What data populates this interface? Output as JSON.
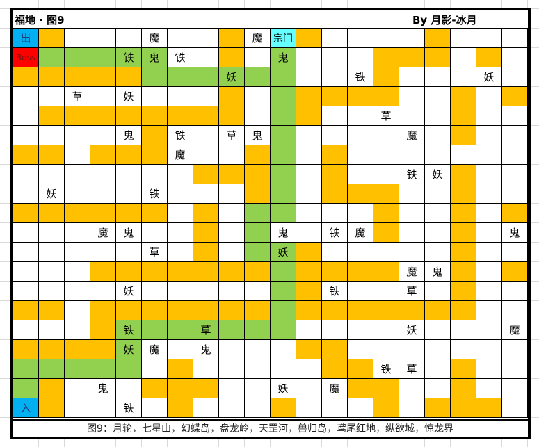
{
  "header": {
    "title": "福地 · 图9",
    "author": "By 月影-冰月"
  },
  "footer": {
    "text": "图9：月轮，七星山，幻蝶岛，盘龙岭，天罡河，兽归岛，鸢尾红地，纵欲城，惊龙界"
  },
  "colors": {
    "O": "#FFC000",
    "G": "#92D050",
    "B": "#00B0F0",
    "R": "#FF0000",
    "C": "#66FFFF",
    "W": "#FFFFFF"
  },
  "legend_codes": {
    "O": "orange",
    "G": "green",
    "B": "blue",
    "R": "red",
    "C": "cyan",
    "W": "white"
  },
  "grid": {
    "rows": [
      "BOWWWWWWOWCOWWWWOWWW",
      "RGGGGGWWOWGWWWOOOWOW",
      "OOOOOGGGGGGWWWOWWWWW",
      "WWWWWWWWOWGOOOOWWOWO",
      "WOOOOOOOOWGOWWWWWOWW",
      "WWWWWOWWWWGWWWWWWOWW",
      "OOWOOOWWWOGWOWWWWWWW",
      "WWWWWWWOOOGWOWWWWOWW",
      "WWWWWWWWWOGWOOOWWOWW",
      "OOOOOOWOWGGWWWOWWOWO",
      "WWWWWWWOWGWWWWOWWOWW",
      "WWWWWWWOWGGOWWWWWOWW",
      "WWWOOOOOOOGOOOOWWOWO",
      "WWWWWWWWWWGOWWWWWOWW",
      "OOWOOOOOOOGOOOOOOOWW",
      "WWWOGGGGGGGWWWWWWWWW",
      "OOOOGWWWWWWOOWWWWWWW",
      "GGGGGWOWWWWWOOWWWOWW",
      "GOWWWOOOWWWWWOOWWOWW",
      "BOWWWWOWWWOWWWOWOOOW"
    ],
    "labels": [
      [
        "出",
        "",
        "",
        "",
        "",
        "魔",
        "",
        "",
        "",
        "魔",
        "宗门",
        "",
        "",
        "",
        "",
        "",
        "",
        "",
        "",
        ""
      ],
      [
        "Boss",
        "",
        "",
        "",
        "铁",
        "鬼",
        "铁",
        "",
        "",
        "",
        "鬼",
        "",
        "",
        "",
        "",
        "",
        "",
        "",
        "",
        ""
      ],
      [
        "",
        "",
        "",
        "",
        "",
        "",
        "",
        "",
        "妖",
        "",
        "",
        "",
        "",
        "铁",
        "",
        "",
        "",
        "",
        "妖",
        ""
      ],
      [
        "",
        "",
        "草",
        "",
        "妖",
        "",
        "",
        "",
        "",
        "",
        "",
        "",
        "",
        "",
        "",
        "",
        "",
        "",
        "",
        ""
      ],
      [
        "",
        "",
        "",
        "",
        "",
        "",
        "",
        "",
        "",
        "",
        "",
        "",
        "",
        "",
        "草",
        "",
        "",
        "",
        "",
        ""
      ],
      [
        "",
        "",
        "",
        "",
        "鬼",
        "",
        "铁",
        "",
        "草",
        "鬼",
        "",
        "",
        "",
        "",
        "",
        "魔",
        "",
        "",
        "",
        ""
      ],
      [
        "",
        "",
        "",
        "",
        "",
        "",
        "魔",
        "",
        "",
        "",
        "",
        "",
        "",
        "",
        "",
        "",
        "",
        "",
        "",
        ""
      ],
      [
        "",
        "",
        "",
        "",
        "",
        "",
        "",
        "",
        "",
        "",
        "",
        "",
        "",
        "",
        "",
        "铁",
        "妖",
        "",
        "",
        ""
      ],
      [
        "",
        "妖",
        "",
        "",
        "",
        "铁",
        "",
        "",
        "",
        "",
        "",
        "",
        "",
        "",
        "",
        "",
        "",
        "",
        "",
        ""
      ],
      [
        "",
        "",
        "",
        "",
        "",
        "",
        "",
        "",
        "",
        "",
        "",
        "",
        "",
        "",
        "",
        "",
        "",
        "",
        "",
        ""
      ],
      [
        "",
        "",
        "",
        "魔",
        "鬼",
        "",
        "",
        "",
        "",
        "",
        "鬼",
        "",
        "铁",
        "魔",
        "",
        "",
        "",
        "",
        "",
        "鬼"
      ],
      [
        "",
        "",
        "",
        "",
        "",
        "草",
        "",
        "",
        "",
        "",
        "妖",
        "",
        "",
        "",
        "",
        "",
        "",
        "",
        "",
        ""
      ],
      [
        "",
        "",
        "",
        "",
        "",
        "",
        "",
        "",
        "",
        "",
        "",
        "",
        "",
        "",
        "",
        "魔",
        "鬼",
        "",
        "",
        ""
      ],
      [
        "",
        "",
        "",
        "",
        "妖",
        "",
        "",
        "",
        "",
        "",
        "",
        "",
        "铁",
        "",
        "",
        "草",
        "",
        "",
        "",
        ""
      ],
      [
        "",
        "",
        "",
        "",
        "",
        "",
        "",
        "",
        "",
        "",
        "",
        "",
        "",
        "",
        "",
        "",
        "",
        "",
        "",
        ""
      ],
      [
        "",
        "",
        "",
        "",
        "铁",
        "",
        "",
        "草",
        "",
        "",
        "",
        "",
        "",
        "",
        "",
        "妖",
        "",
        "",
        "",
        "魔"
      ],
      [
        "",
        "",
        "",
        "",
        "妖",
        "魔",
        "",
        "鬼",
        "",
        "",
        "",
        "",
        "",
        "",
        "",
        "",
        "",
        "",
        "",
        ""
      ],
      [
        "",
        "",
        "",
        "",
        "",
        "",
        "",
        "",
        "",
        "",
        "",
        "",
        "",
        "",
        "铁",
        "草",
        "",
        "",
        "",
        ""
      ],
      [
        "",
        "",
        "",
        "鬼",
        "",
        "",
        "",
        "",
        "",
        "",
        "妖",
        "",
        "魔",
        "",
        "",
        "",
        "",
        "",
        "",
        ""
      ],
      [
        "入",
        "",
        "",
        "",
        "铁",
        "",
        "",
        "",
        "",
        "",
        "",
        "",
        "",
        "",
        "",
        "",
        "",
        "",
        "",
        ""
      ]
    ]
  }
}
